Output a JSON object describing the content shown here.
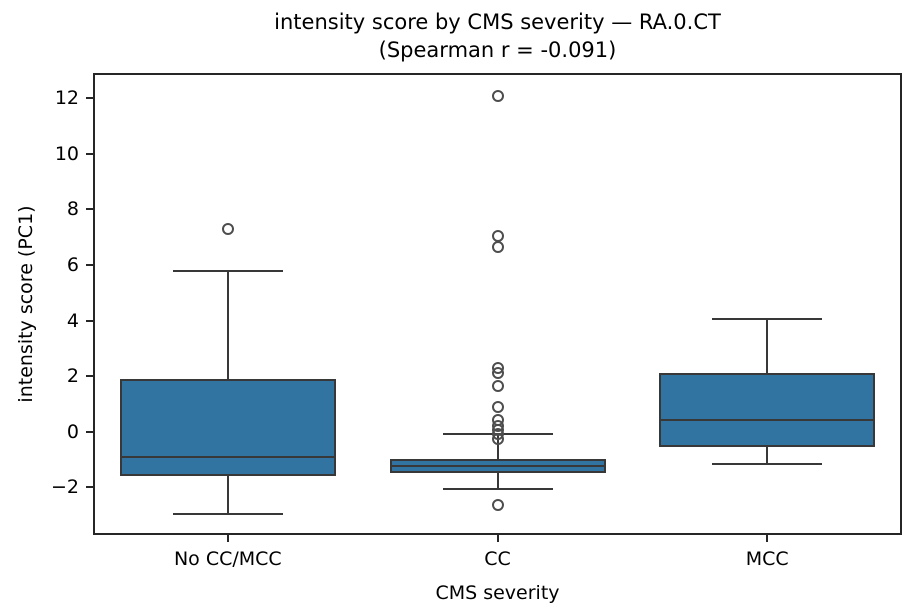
{
  "chart_data": {
    "type": "box",
    "title": "intensity score by CMS severity — RA.0.CT",
    "subtitle": "(Spearman r = -0.091)",
    "xlabel": "CMS severity",
    "ylabel": "intensity score (PC1)",
    "ylim": [
      -3.72,
      12.91
    ],
    "y_ticks": [
      12,
      10,
      8,
      6,
      4,
      2,
      0,
      -2
    ],
    "categories": [
      "No CC/MCC",
      "CC",
      "MCC"
    ],
    "series": [
      {
        "category": "No CC/MCC",
        "whisker_low": -2.95,
        "q1": -1.6,
        "median": -0.9,
        "q3": 1.9,
        "whisker_high": 5.8,
        "outliers": [
          7.3
        ]
      },
      {
        "category": "CC",
        "whisker_low": -2.05,
        "q1": -1.5,
        "median": -1.25,
        "q3": -1.0,
        "whisker_high": -0.1,
        "outliers": [
          12.1,
          7.05,
          6.65,
          2.3,
          2.1,
          1.65,
          0.9,
          0.42,
          0.2,
          0.05,
          -0.1,
          -0.25,
          -2.65
        ]
      },
      {
        "category": "MCC",
        "whisker_low": -1.15,
        "q1": -0.55,
        "median": 0.42,
        "q3": 2.1,
        "whisker_high": 4.05,
        "outliers": []
      }
    ],
    "grid": false,
    "legend": "none",
    "colors": {
      "box_fill": "#3274A1",
      "line": "#383838",
      "spine": "#262626",
      "outlier_edge": "#4d4d4d",
      "text": "#000000"
    }
  }
}
